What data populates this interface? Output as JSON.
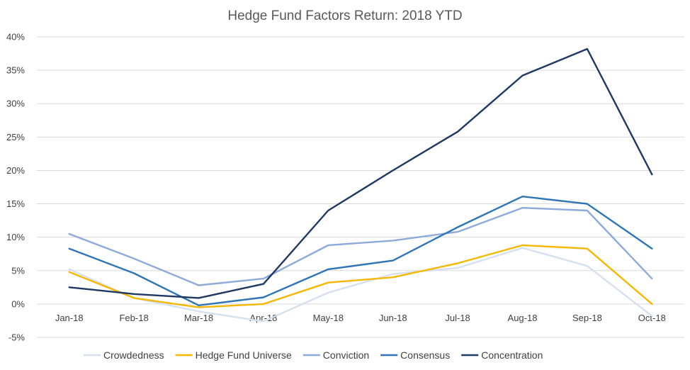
{
  "chart_data": {
    "type": "line",
    "title": "Hedge Fund Factors Return: 2018 YTD",
    "categories": [
      "Jan-18",
      "Feb-18",
      "Mar-18",
      "Apr-18",
      "May-18",
      "Jun-18",
      "Jul-18",
      "Aug-18",
      "Sep-18",
      "Oct-18"
    ],
    "ylim": [
      -5,
      40
    ],
    "yticks": [
      -5,
      0,
      5,
      10,
      15,
      20,
      25,
      30,
      35,
      40
    ],
    "ytick_labels": [
      "-5%",
      "0%",
      "5%",
      "10%",
      "15%",
      "20%",
      "25%",
      "30%",
      "35%",
      "40%"
    ],
    "grid": true,
    "legend_position": "bottom",
    "series": [
      {
        "name": "Crowdedness",
        "color": "#d6e0ef",
        "values": [
          5.2,
          0.9,
          -1.1,
          -2.6,
          1.7,
          4.5,
          5.4,
          8.4,
          5.7,
          -1.8
        ]
      },
      {
        "name": "Hedge Fund Universe",
        "color": "#f5b800",
        "values": [
          4.8,
          0.9,
          -0.5,
          0.0,
          3.2,
          4.0,
          6.1,
          8.8,
          8.3,
          0.0
        ]
      },
      {
        "name": "Conviction",
        "color": "#8eaadb",
        "values": [
          10.5,
          6.8,
          2.8,
          3.8,
          8.8,
          9.5,
          10.8,
          14.4,
          14.0,
          3.8
        ]
      },
      {
        "name": "Consensus",
        "color": "#2e75b6",
        "values": [
          8.3,
          4.6,
          -0.2,
          1.0,
          5.2,
          6.5,
          11.5,
          16.1,
          15.0,
          8.3
        ]
      },
      {
        "name": "Concentration",
        "color": "#1f3864",
        "values": [
          2.5,
          1.5,
          0.9,
          3.0,
          14.0,
          20.0,
          25.8,
          34.2,
          38.2,
          19.4
        ]
      }
    ]
  }
}
